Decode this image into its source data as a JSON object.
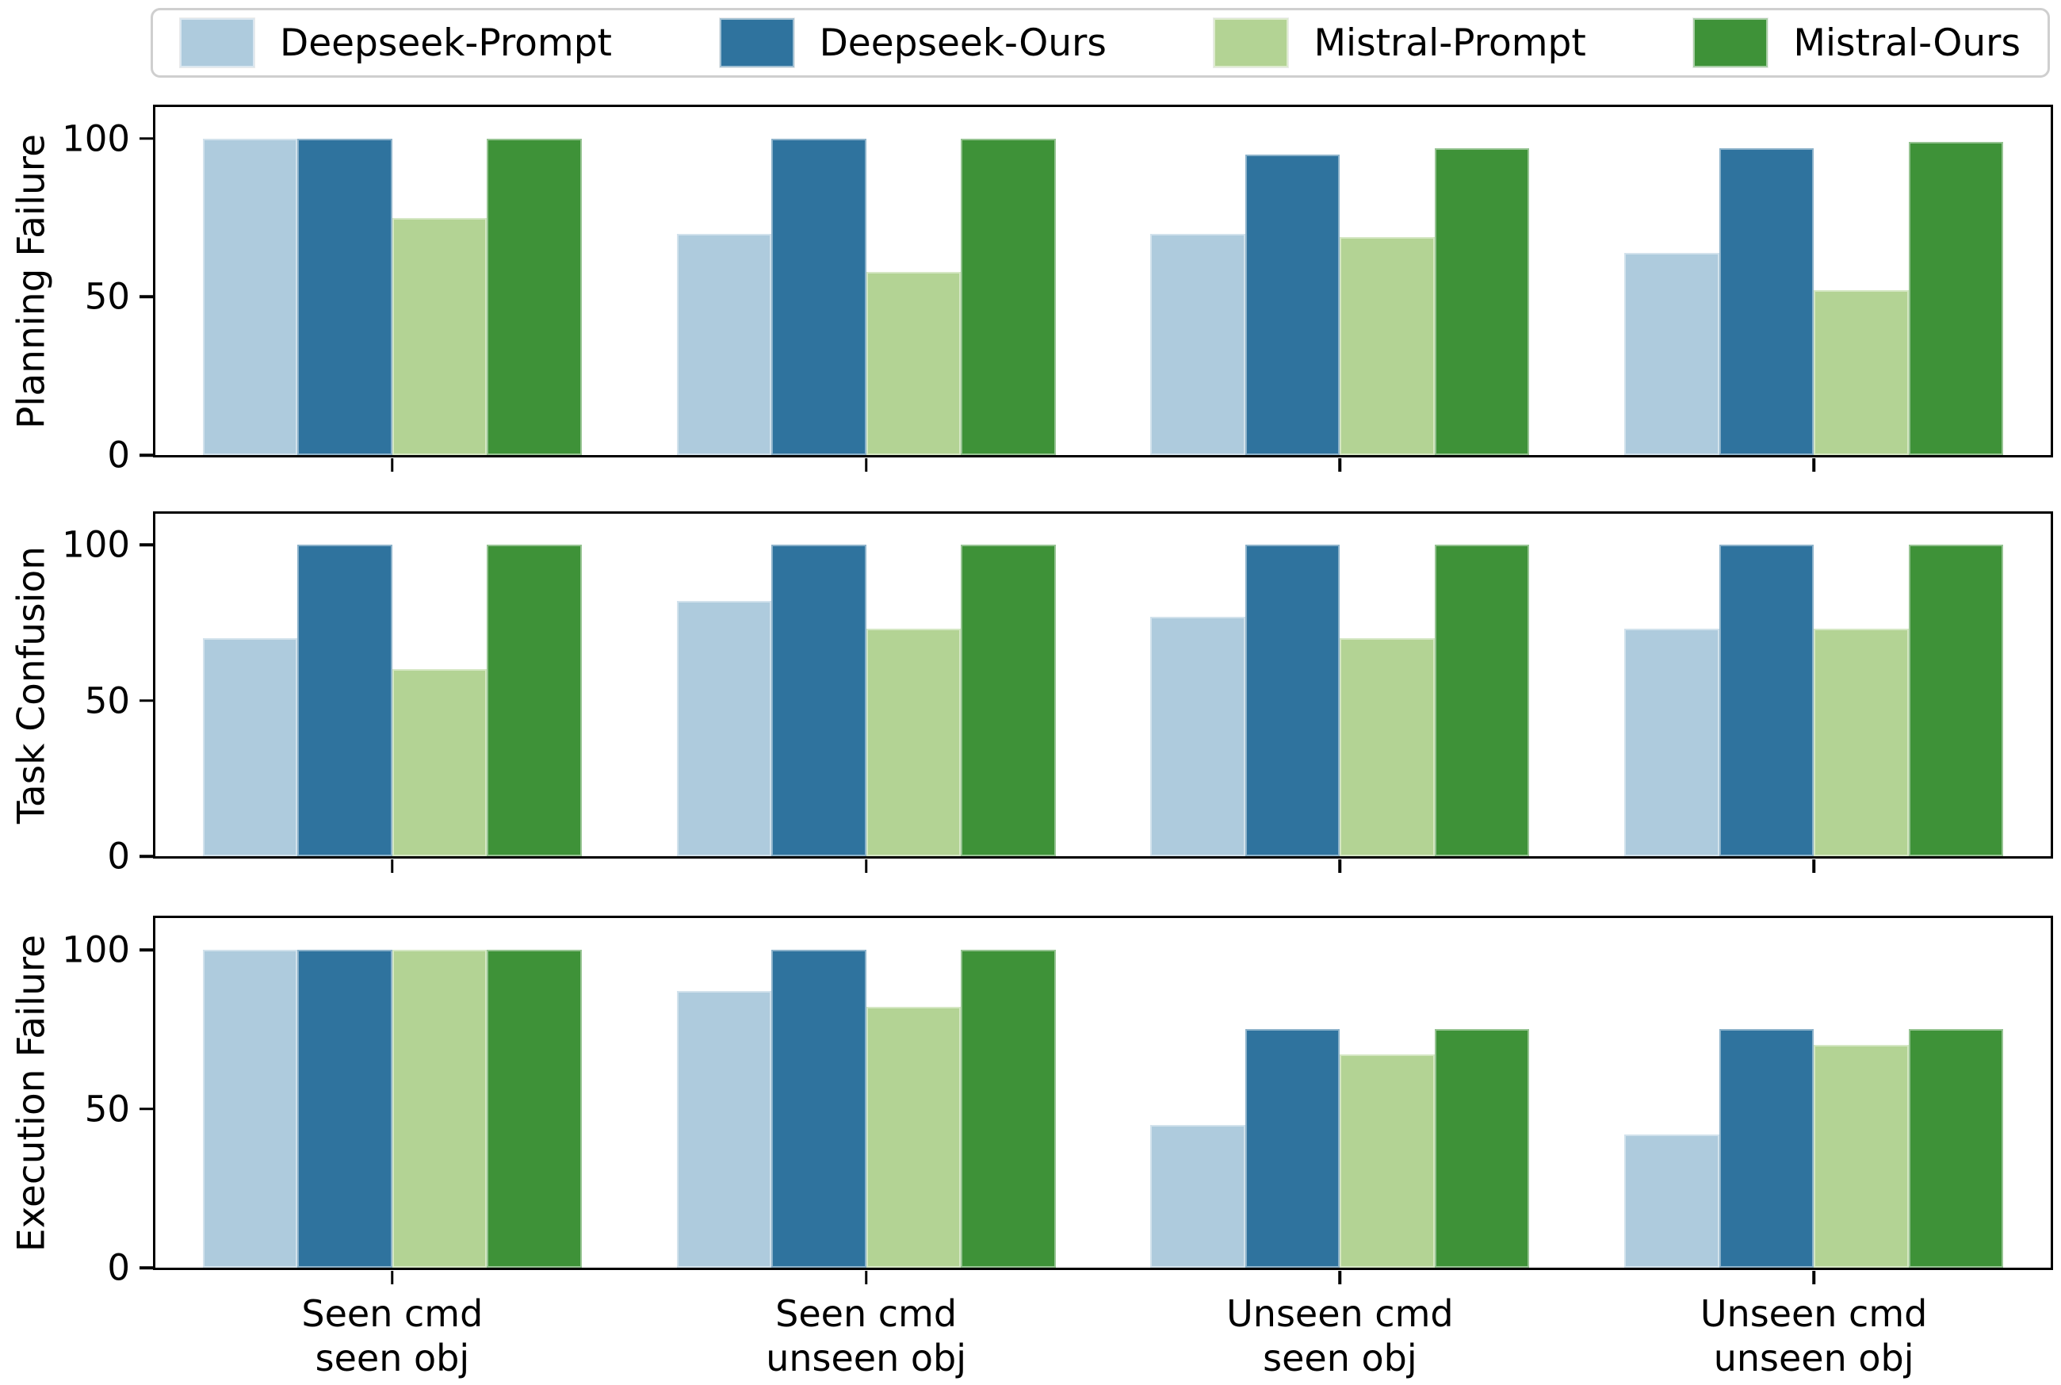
{
  "chart_data": {
    "type": "bar",
    "title": "",
    "grid": false,
    "legend_position": "top",
    "ylim": [
      0,
      110
    ],
    "yticks": [
      0,
      50,
      100
    ],
    "categories": [
      [
        "Seen cmd",
        "seen obj"
      ],
      [
        "Seen cmd",
        "unseen obj"
      ],
      [
        "Unseen cmd",
        "seen obj"
      ],
      [
        "Unseen cmd",
        "unseen obj"
      ]
    ],
    "legend": [
      {
        "label": "Deepseek-Prompt",
        "color": "#aecbdd"
      },
      {
        "label": "Deepseek-Ours",
        "color": "#2f739e"
      },
      {
        "label": "Mistral-Prompt",
        "color": "#b3d394"
      },
      {
        "label": "Mistral-Ours",
        "color": "#3e9238"
      }
    ],
    "subplots": [
      {
        "ylabel": "Planning Failure",
        "series": [
          {
            "name": "Deepseek-Prompt",
            "values": [
              100,
              70,
              70,
              64
            ]
          },
          {
            "name": "Deepseek-Ours",
            "values": [
              100,
              100,
              95,
              97
            ]
          },
          {
            "name": "Mistral-Prompt",
            "values": [
              75,
              58,
              69,
              52
            ]
          },
          {
            "name": "Mistral-Ours",
            "values": [
              100,
              100,
              97,
              99
            ]
          }
        ]
      },
      {
        "ylabel": "Task Confusion",
        "series": [
          {
            "name": "Deepseek-Prompt",
            "values": [
              70,
              82,
              77,
              73
            ]
          },
          {
            "name": "Deepseek-Ours",
            "values": [
              100,
              100,
              100,
              100
            ]
          },
          {
            "name": "Mistral-Prompt",
            "values": [
              60,
              73,
              70,
              73
            ]
          },
          {
            "name": "Mistral-Ours",
            "values": [
              100,
              100,
              100,
              100
            ]
          }
        ]
      },
      {
        "ylabel": "Execution Failure",
        "series": [
          {
            "name": "Deepseek-Prompt",
            "values": [
              100,
              87,
              45,
              42
            ]
          },
          {
            "name": "Deepseek-Ours",
            "values": [
              100,
              100,
              75,
              75
            ]
          },
          {
            "name": "Mistral-Prompt",
            "values": [
              100,
              82,
              67,
              70
            ]
          },
          {
            "name": "Mistral-Ours",
            "values": [
              100,
              100,
              75,
              75
            ]
          }
        ]
      }
    ]
  }
}
